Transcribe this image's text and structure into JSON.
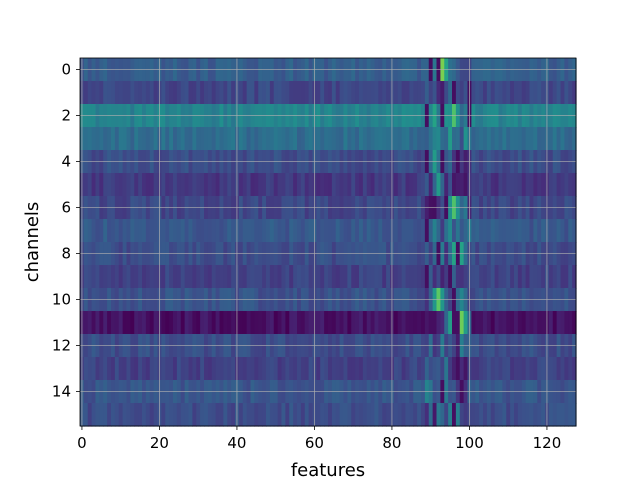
{
  "chart_data": {
    "type": "heatmap",
    "title": "",
    "xlabel": "features",
    "ylabel": "channels",
    "colormap": "viridis",
    "grid": true,
    "xlim": [
      -0.5,
      127.5
    ],
    "ylim": [
      15.5,
      -0.5
    ],
    "x_ticks": [
      0,
      20,
      40,
      60,
      80,
      100,
      120
    ],
    "x_tick_labels": [
      "0",
      "20",
      "40",
      "60",
      "80",
      "100",
      "120"
    ],
    "y_ticks": [
      0,
      2,
      4,
      6,
      8,
      10,
      12,
      14
    ],
    "y_tick_labels": [
      "0",
      "2",
      "4",
      "6",
      "8",
      "10",
      "12",
      "14"
    ],
    "n_rows": 16,
    "n_cols": 128,
    "row_baselines": [
      0.3,
      0.22,
      0.45,
      0.36,
      0.24,
      0.17,
      0.22,
      0.28,
      0.24,
      0.2,
      0.26,
      0.05,
      0.24,
      0.2,
      0.27,
      0.24
    ],
    "peak_band": {
      "start_feature": 89,
      "end_feature": 100,
      "row_peaks": [
        {
          "row": 0,
          "feature": 93,
          "value": 0.8
        },
        {
          "row": 1,
          "feature": 95,
          "value": 0.35
        },
        {
          "row": 2,
          "feature": 96,
          "value": 0.72
        },
        {
          "row": 3,
          "feature": 95,
          "value": 0.55
        },
        {
          "row": 4,
          "feature": 91,
          "value": 0.55
        },
        {
          "row": 5,
          "feature": 92,
          "value": 0.55
        },
        {
          "row": 6,
          "feature": 96,
          "value": 0.72
        },
        {
          "row": 7,
          "feature": 95,
          "value": 0.48
        },
        {
          "row": 8,
          "feature": 97,
          "value": 0.8
        },
        {
          "row": 9,
          "feature": 95,
          "value": 0.4
        },
        {
          "row": 10,
          "feature": 92,
          "value": 0.75
        },
        {
          "row": 11,
          "feature": 97,
          "value": 1.0
        },
        {
          "row": 12,
          "feature": 93,
          "value": 0.42
        },
        {
          "row": 13,
          "feature": 94,
          "value": 0.4
        },
        {
          "row": 14,
          "feature": 93,
          "value": 0.5
        },
        {
          "row": 15,
          "feature": 96,
          "value": 0.65
        }
      ]
    }
  }
}
